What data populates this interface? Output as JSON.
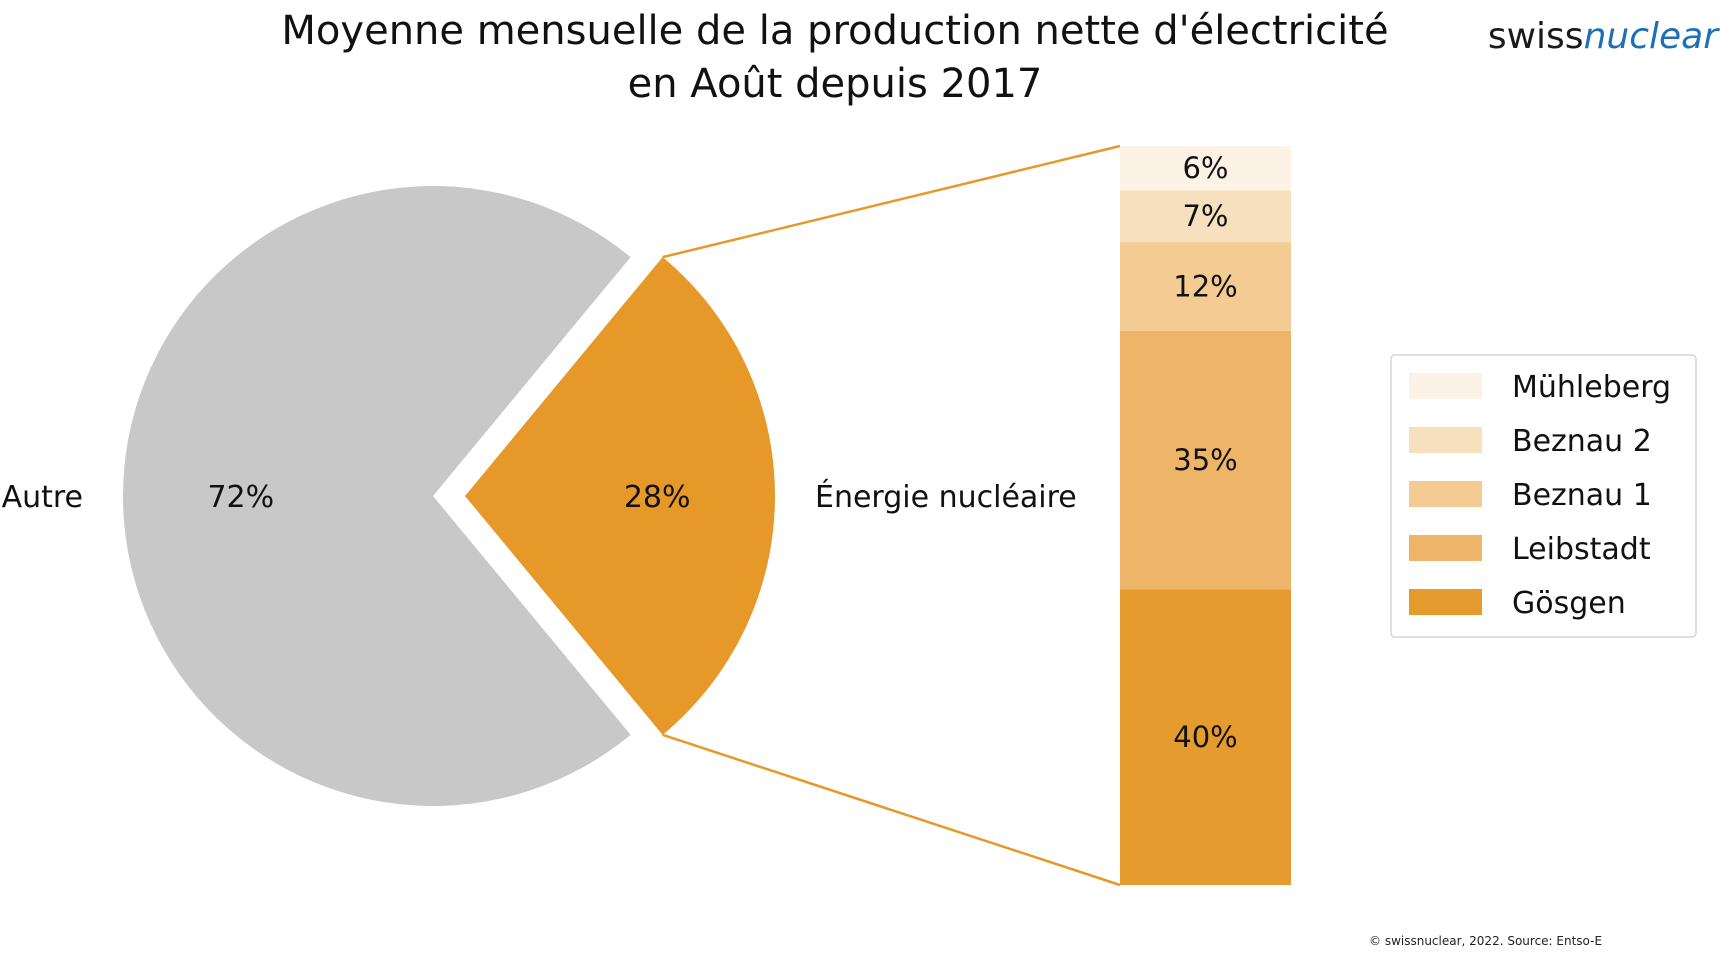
{
  "header": {
    "title_line1": "Moyenne mensuelle de la production nette d'électricité",
    "title_line2": "en Août depuis 2017",
    "logo_part1": "swiss",
    "logo_part2": "nuclear"
  },
  "footer": {
    "source": "© swissnuclear, 2022. Source: Entso-E"
  },
  "chart_data": [
    {
      "type": "pie",
      "slices": [
        {
          "label": "Autre",
          "value": 72,
          "value_label": "72%",
          "color": "#c8c8c8",
          "exploded": false
        },
        {
          "label": "Énergie nucléaire",
          "value": 28,
          "value_label": "28%",
          "color": "#e69828",
          "exploded": true
        }
      ]
    },
    {
      "type": "bar",
      "stacked": true,
      "series": [
        {
          "name": "Gösgen",
          "value": 40,
          "value_label": "40%",
          "color": "#e69b2e"
        },
        {
          "name": "Leibstadt",
          "value": 35,
          "value_label": "35%",
          "color": "#eeb568"
        },
        {
          "name": "Beznau 1",
          "value": 12,
          "value_label": "12%",
          "color": "#f3cb93"
        },
        {
          "name": "Beznau 2",
          "value": 7,
          "value_label": "7%",
          "color": "#f7e0bd"
        },
        {
          "name": "Mühleberg",
          "value": 6,
          "value_label": "6%",
          "color": "#fcf3e6"
        }
      ],
      "legend_position": "right"
    }
  ],
  "connector_color": "#e69828"
}
